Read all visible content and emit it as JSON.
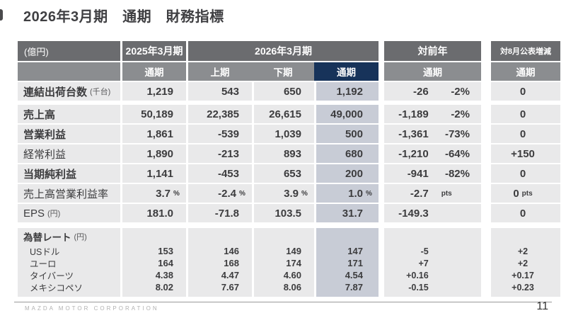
{
  "title": "2026年3月期　通期　財務指標",
  "colors": {
    "navy": "#17335a",
    "hdark": "#6b6c6f",
    "hmid": "#8b8d90",
    "cellbg": "#e9e9ea",
    "bluecell": "#c8ccd6"
  },
  "table": {
    "unit_label": "(億円)",
    "col_groups": {
      "fy2025": "2025年3月期",
      "fy2026": "2026年3月期",
      "yoy": "対前年",
      "vs_aug": "対8月公表増減"
    },
    "sub_headers": [
      "通期",
      "上期",
      "下期",
      "通期",
      "通期",
      "通期"
    ],
    "rows": [
      {
        "label": "連結出荷台数",
        "label_unit": "(千台)",
        "bold": true,
        "cells": [
          "1,219",
          "543",
          "650",
          "1,192"
        ],
        "yoy": [
          "-26",
          "-2%"
        ],
        "aug": "0",
        "gap": "lg"
      },
      {
        "label": "売上高",
        "label_unit": "",
        "bold": true,
        "cells": [
          "50,189",
          "22,385",
          "26,615",
          "49,000"
        ],
        "yoy": [
          "-1,189",
          "-2%"
        ],
        "aug": "0",
        "gap": ""
      },
      {
        "label": "営業利益",
        "label_unit": "",
        "bold": true,
        "cells": [
          "1,861",
          "-539",
          "1,039",
          "500"
        ],
        "yoy": [
          "-1,361",
          "-73%"
        ],
        "aug": "0",
        "gap": ""
      },
      {
        "label": "経常利益",
        "label_unit": "",
        "bold": false,
        "cells": [
          "1,890",
          "-213",
          "893",
          "680"
        ],
        "yoy": [
          "-1,210",
          "-64%"
        ],
        "aug": "+150",
        "gap": ""
      },
      {
        "label": "当期純利益",
        "label_unit": "",
        "bold": true,
        "cells": [
          "1,141",
          "-453",
          "653",
          "200"
        ],
        "yoy": [
          "-941",
          "-82%"
        ],
        "aug": "0",
        "gap": ""
      },
      {
        "label": "売上高営業利益率",
        "label_unit": "",
        "bold": false,
        "cells": [
          [
            "3.7",
            "%"
          ],
          [
            "-2.4",
            "%"
          ],
          [
            "3.9",
            "%"
          ],
          [
            "1.0",
            "%"
          ]
        ],
        "yoy": [
          "-2.7",
          "pts"
        ],
        "aug": [
          "0",
          "pts"
        ],
        "gap": ""
      },
      {
        "label": "EPS",
        "label_unit": "(円)",
        "bold": false,
        "cells": [
          "181.0",
          "-71.8",
          "103.5",
          "31.7"
        ],
        "yoy": [
          "-149.3",
          ""
        ],
        "aug": "0",
        "gap": "xl"
      }
    ],
    "fx": {
      "label": "為替レート",
      "label_unit": "(円)",
      "rows": [
        {
          "label": "USドル",
          "cells": [
            "153",
            "146",
            "149",
            "147"
          ],
          "yoy": "-5",
          "aug": "+2"
        },
        {
          "label": "ユーロ",
          "cells": [
            "164",
            "168",
            "174",
            "171"
          ],
          "yoy": "+7",
          "aug": "+2"
        },
        {
          "label": "タイバーツ",
          "cells": [
            "4.38",
            "4.47",
            "4.60",
            "4.54"
          ],
          "yoy": "+0.16",
          "aug": "+0.17"
        },
        {
          "label": "メキシコペソ",
          "cells": [
            "8.02",
            "7.67",
            "8.06",
            "7.87"
          ],
          "yoy": "-0.15",
          "aug": "+0.23"
        }
      ]
    }
  },
  "footer": {
    "company": "MAZDA MOTOR CORPORATION",
    "page": "11"
  }
}
